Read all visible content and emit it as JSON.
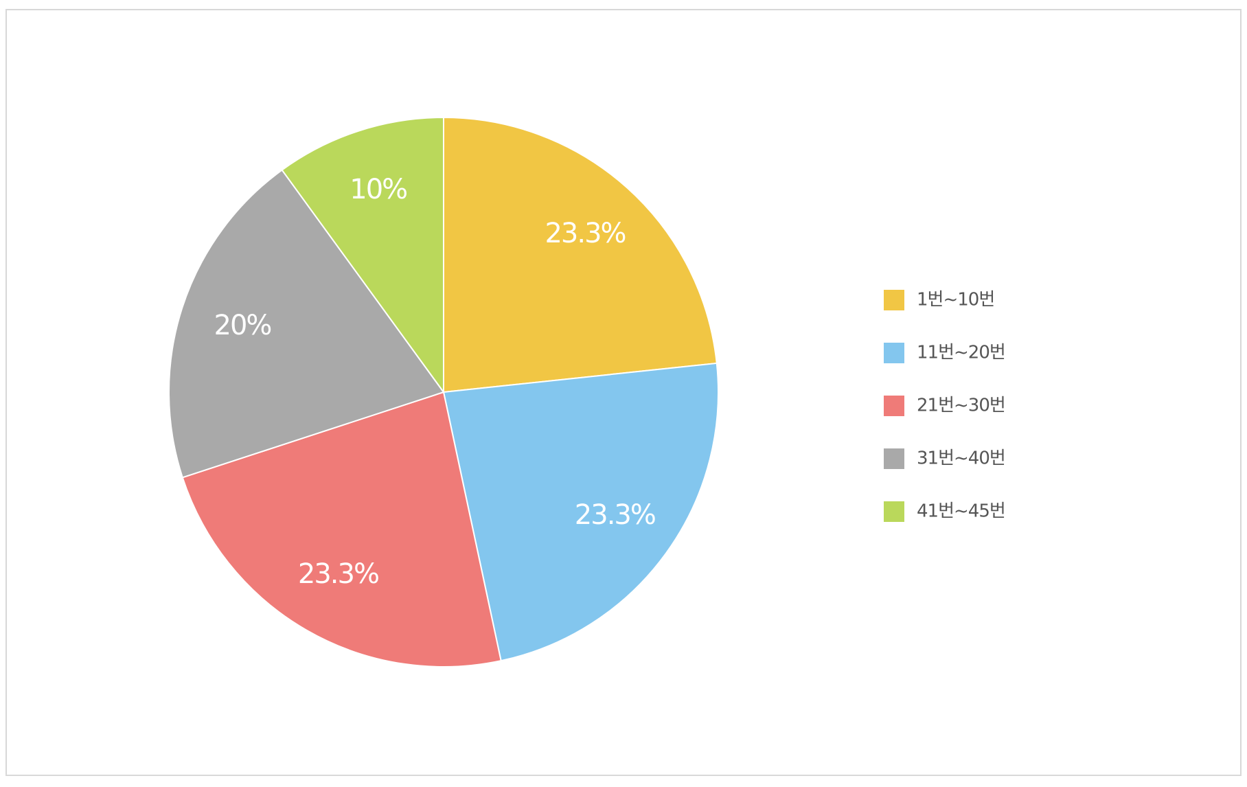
{
  "chart_data": {
    "type": "pie",
    "categories": [
      "1번~10번",
      "11번~20번",
      "21번~30번",
      "31번~40번",
      "41번~45번"
    ],
    "values": [
      23.3,
      23.3,
      23.3,
      20,
      10
    ],
    "value_labels": [
      "23.3%",
      "23.3%",
      "23.3%",
      "20%",
      "10%"
    ],
    "colors": [
      "#f1c644",
      "#83c6ee",
      "#ef7b78",
      "#a9a9a9",
      "#bad85b"
    ],
    "legend": "right"
  }
}
